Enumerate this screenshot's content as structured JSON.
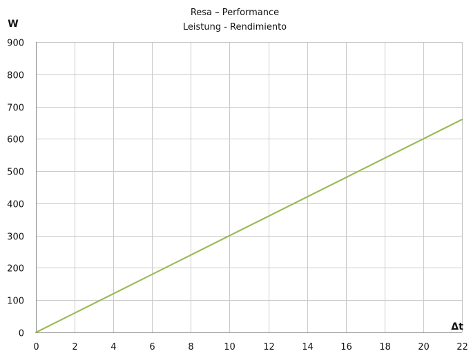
{
  "chart_data": {
    "type": "line",
    "title": "Resa – Performance",
    "subtitle": "Leistung - Rendimiento",
    "xlabel": "Δt",
    "ylabel": "W",
    "xlim": [
      0,
      22
    ],
    "ylim": [
      0,
      900
    ],
    "x_ticks": [
      0,
      2,
      4,
      6,
      8,
      10,
      12,
      14,
      16,
      18,
      20,
      22
    ],
    "y_ticks": [
      0,
      100,
      200,
      300,
      400,
      500,
      600,
      700,
      800,
      900
    ],
    "grid": true,
    "legend": "none",
    "series": [
      {
        "x": [
          0,
          2,
          4,
          6,
          8,
          10,
          12,
          14,
          16,
          18,
          20,
          22
        ],
        "values": [
          0,
          60,
          120,
          180,
          240,
          300,
          360,
          420,
          480,
          540,
          600,
          660
        ],
        "color": "#9bbb59"
      }
    ]
  }
}
